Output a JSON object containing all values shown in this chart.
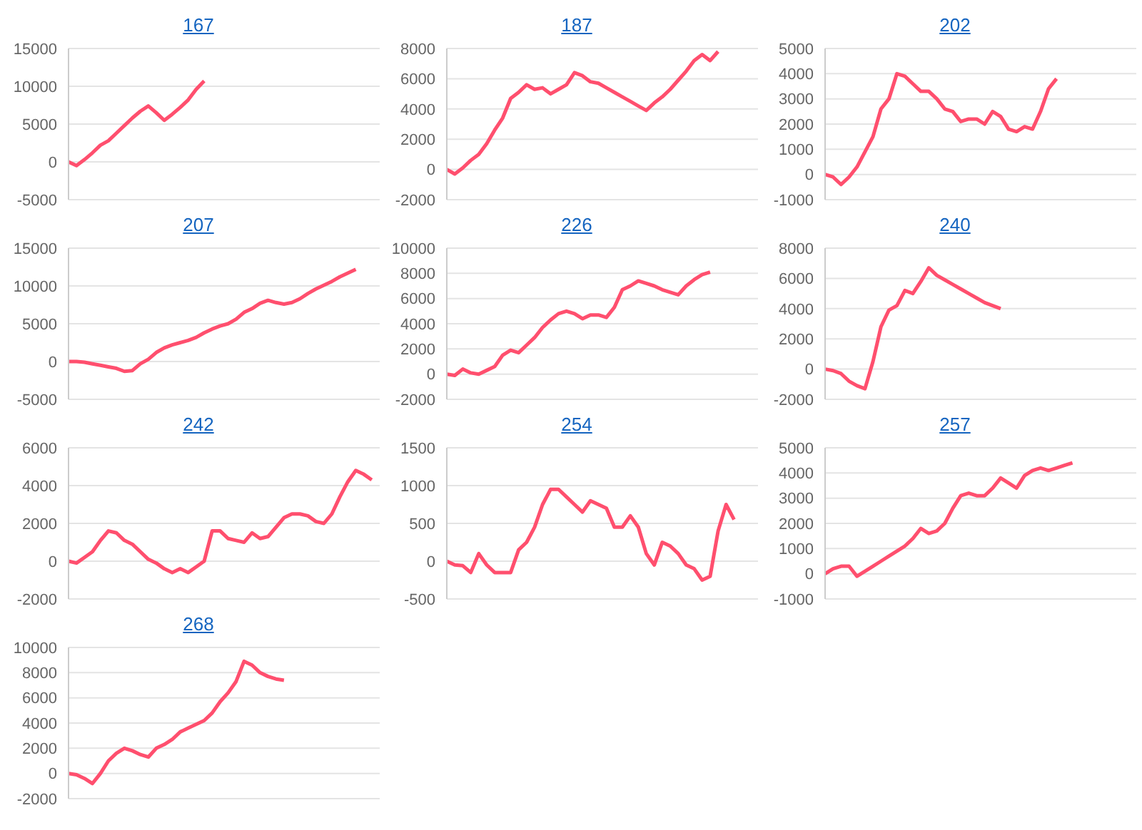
{
  "chart_data": [
    {
      "type": "line",
      "title": "167",
      "categories": [
        null,
        null,
        null,
        null,
        null,
        null,
        null,
        null,
        null,
        null,
        null,
        null,
        null,
        null,
        null,
        null,
        null,
        null,
        null,
        null,
        null,
        null,
        null,
        null,
        null,
        null,
        null,
        null,
        null,
        null,
        null,
        null,
        null,
        null,
        null,
        null,
        null,
        null,
        null,
        null
      ],
      "series": [
        {
          "color": "#ff4f6e",
          "values": [
            0,
            -500,
            300,
            1200,
            2200,
            2800,
            3800,
            4800,
            5800,
            6700,
            7400,
            6500,
            5500,
            6300,
            7200,
            8200,
            9600,
            10700,
            null,
            null,
            null,
            null,
            null,
            null,
            null,
            null,
            null,
            null,
            null,
            null,
            null,
            null,
            null,
            null,
            null,
            null,
            null,
            null,
            null,
            null
          ]
        }
      ],
      "ylim": [
        -5000,
        15000
      ],
      "yticks": [
        -5000,
        0,
        5000,
        10000,
        15000
      ],
      "grid": "y",
      "tick_labels": "y"
    },
    {
      "type": "line",
      "title": "187",
      "categories": [
        null,
        null,
        null,
        null,
        null,
        null,
        null,
        null,
        null,
        null,
        null,
        null,
        null,
        null,
        null,
        null,
        null,
        null,
        null,
        null,
        null,
        null,
        null,
        null,
        null,
        null,
        null,
        null,
        null,
        null,
        null,
        null,
        null,
        null,
        null,
        null,
        null,
        null,
        null,
        null
      ],
      "series": [
        {
          "color": "#ff4f6e",
          "values": [
            0,
            -300,
            100,
            600,
            1000,
            1700,
            2600,
            3400,
            4700,
            5100,
            5600,
            5300,
            5400,
            5000,
            5300,
            5600,
            6400,
            6200,
            5800,
            5700,
            5400,
            5100,
            4800,
            4500,
            4200,
            3900,
            4400,
            4800,
            5300,
            5900,
            6500,
            7200,
            7600,
            7200,
            7800,
            null,
            null,
            null,
            null,
            null
          ]
        }
      ],
      "ylim": [
        -2000,
        8000
      ],
      "yticks": [
        -2000,
        0,
        2000,
        4000,
        6000,
        8000
      ],
      "grid": "y",
      "tick_labels": "y"
    },
    {
      "type": "line",
      "title": "202",
      "categories": [
        null,
        null,
        null,
        null,
        null,
        null,
        null,
        null,
        null,
        null,
        null,
        null,
        null,
        null,
        null,
        null,
        null,
        null,
        null,
        null,
        null,
        null,
        null,
        null,
        null,
        null,
        null,
        null,
        null,
        null,
        null,
        null,
        null,
        null,
        null,
        null,
        null,
        null,
        null,
        null
      ],
      "series": [
        {
          "color": "#ff4f6e",
          "values": [
            0,
            -100,
            -400,
            -100,
            300,
            900,
            1500,
            2600,
            3000,
            4000,
            3900,
            3600,
            3300,
            3300,
            3000,
            2600,
            2500,
            2100,
            2200,
            2200,
            2000,
            2500,
            2300,
            1800,
            1700,
            1900,
            1800,
            2500,
            3400,
            3800,
            null,
            null,
            null,
            null,
            null,
            null,
            null,
            null,
            null,
            null
          ]
        }
      ],
      "ylim": [
        -1000,
        5000
      ],
      "yticks": [
        -1000,
        0,
        1000,
        2000,
        3000,
        4000,
        5000
      ],
      "grid": "y",
      "tick_labels": "y"
    },
    {
      "type": "line",
      "title": "207",
      "categories": [
        null,
        null,
        null,
        null,
        null,
        null,
        null,
        null,
        null,
        null,
        null,
        null,
        null,
        null,
        null,
        null,
        null,
        null,
        null,
        null,
        null,
        null,
        null,
        null,
        null,
        null,
        null,
        null,
        null,
        null,
        null,
        null,
        null,
        null,
        null,
        null,
        null,
        null,
        null,
        null
      ],
      "series": [
        {
          "color": "#ff4f6e",
          "values": [
            0,
            0,
            -100,
            -300,
            -500,
            -700,
            -900,
            -1300,
            -1200,
            -300,
            300,
            1200,
            1800,
            2200,
            2500,
            2800,
            3200,
            3800,
            4300,
            4700,
            5000,
            5600,
            6500,
            7000,
            7700,
            8100,
            7800,
            7600,
            7800,
            8300,
            9000,
            9600,
            10100,
            10600,
            11200,
            11700,
            12200,
            null,
            null,
            null
          ]
        }
      ],
      "ylim": [
        -5000,
        15000
      ],
      "yticks": [
        -5000,
        0,
        5000,
        10000,
        15000
      ],
      "grid": "y",
      "tick_labels": "y"
    },
    {
      "type": "line",
      "title": "226",
      "categories": [
        null,
        null,
        null,
        null,
        null,
        null,
        null,
        null,
        null,
        null,
        null,
        null,
        null,
        null,
        null,
        null,
        null,
        null,
        null,
        null,
        null,
        null,
        null,
        null,
        null,
        null,
        null,
        null,
        null,
        null,
        null,
        null,
        null,
        null,
        null,
        null,
        null,
        null,
        null,
        null
      ],
      "series": [
        {
          "color": "#ff4f6e",
          "values": [
            0,
            -100,
            400,
            100,
            0,
            300,
            600,
            1500,
            1900,
            1700,
            2300,
            2900,
            3700,
            4300,
            4800,
            5000,
            4800,
            4400,
            4700,
            4700,
            4500,
            5300,
            6700,
            7000,
            7400,
            7200,
            7000,
            6700,
            6500,
            6300,
            7000,
            7500,
            7900,
            8100,
            null,
            null,
            null,
            null,
            null,
            null
          ]
        }
      ],
      "ylim": [
        -2000,
        10000
      ],
      "yticks": [
        -2000,
        0,
        2000,
        4000,
        6000,
        8000,
        10000
      ],
      "grid": "y",
      "tick_labels": "y"
    },
    {
      "type": "line",
      "title": "240",
      "categories": [
        null,
        null,
        null,
        null,
        null,
        null,
        null,
        null,
        null,
        null,
        null,
        null,
        null,
        null,
        null,
        null,
        null,
        null,
        null,
        null,
        null,
        null,
        null,
        null,
        null,
        null,
        null,
        null,
        null,
        null,
        null,
        null,
        null,
        null,
        null,
        null,
        null,
        null,
        null,
        null
      ],
      "series": [
        {
          "color": "#ff4f6e",
          "values": [
            0,
            -100,
            -300,
            -800,
            -1100,
            -1300,
            500,
            2800,
            3900,
            4200,
            5200,
            5000,
            5800,
            6700,
            6200,
            5900,
            5600,
            5300,
            5000,
            4700,
            4400,
            4200,
            4000,
            null,
            null,
            null,
            null,
            null,
            null,
            null,
            null,
            null,
            null,
            null,
            null,
            null,
            null,
            null,
            null,
            null
          ]
        }
      ],
      "ylim": [
        -2000,
        8000
      ],
      "yticks": [
        -2000,
        0,
        2000,
        4000,
        6000,
        8000
      ],
      "grid": "y",
      "tick_labels": "y"
    },
    {
      "type": "line",
      "title": "242",
      "categories": [
        null,
        null,
        null,
        null,
        null,
        null,
        null,
        null,
        null,
        null,
        null,
        null,
        null,
        null,
        null,
        null,
        null,
        null,
        null,
        null,
        null,
        null,
        null,
        null,
        null,
        null,
        null,
        null,
        null,
        null,
        null,
        null,
        null,
        null,
        null,
        null,
        null,
        null,
        null,
        null
      ],
      "series": [
        {
          "color": "#ff4f6e",
          "values": [
            0,
            -100,
            200,
            500,
            1100,
            1600,
            1500,
            1100,
            900,
            500,
            100,
            -100,
            -400,
            -600,
            -400,
            -600,
            -300,
            0,
            1600,
            1600,
            1200,
            1100,
            1000,
            1500,
            1200,
            1300,
            1800,
            2300,
            2500,
            2500,
            2400,
            2100,
            2000,
            2500,
            3400,
            4200,
            4800,
            4600,
            4300,
            null
          ]
        }
      ],
      "ylim": [
        -2000,
        6000
      ],
      "yticks": [
        -2000,
        0,
        2000,
        4000,
        6000
      ],
      "grid": "y",
      "tick_labels": "y"
    },
    {
      "type": "line",
      "title": "254",
      "categories": [
        null,
        null,
        null,
        null,
        null,
        null,
        null,
        null,
        null,
        null,
        null,
        null,
        null,
        null,
        null,
        null,
        null,
        null,
        null,
        null,
        null,
        null,
        null,
        null,
        null,
        null,
        null,
        null,
        null,
        null,
        null,
        null,
        null,
        null,
        null,
        null,
        null,
        null,
        null,
        null
      ],
      "series": [
        {
          "color": "#ff4f6e",
          "values": [
            0,
            -50,
            -60,
            -150,
            100,
            -50,
            -150,
            -150,
            -150,
            150,
            250,
            450,
            750,
            950,
            950,
            850,
            750,
            650,
            800,
            750,
            700,
            450,
            450,
            600,
            450,
            100,
            -50,
            250,
            200,
            100,
            -50,
            -100,
            -250,
            -200,
            400,
            750,
            550,
            null,
            null,
            null
          ]
        }
      ],
      "ylim": [
        -500,
        1500
      ],
      "yticks": [
        -500,
        0,
        500,
        1000,
        1500
      ],
      "grid": "y",
      "tick_labels": "y"
    },
    {
      "type": "line",
      "title": "257",
      "categories": [
        null,
        null,
        null,
        null,
        null,
        null,
        null,
        null,
        null,
        null,
        null,
        null,
        null,
        null,
        null,
        null,
        null,
        null,
        null,
        null,
        null,
        null,
        null,
        null,
        null,
        null,
        null,
        null,
        null,
        null,
        null,
        null,
        null,
        null,
        null,
        null,
        null,
        null,
        null,
        null
      ],
      "series": [
        {
          "color": "#ff4f6e",
          "values": [
            0,
            200,
            300,
            300,
            -100,
            100,
            300,
            500,
            700,
            900,
            1100,
            1400,
            1800,
            1600,
            1700,
            2000,
            2600,
            3100,
            3200,
            3100,
            3100,
            3400,
            3800,
            3600,
            3400,
            3900,
            4100,
            4200,
            4100,
            4200,
            4300,
            4400,
            null,
            null,
            null,
            null,
            null,
            null,
            null,
            null
          ]
        }
      ],
      "ylim": [
        -1000,
        5000
      ],
      "yticks": [
        -1000,
        0,
        1000,
        2000,
        3000,
        4000,
        5000
      ],
      "grid": "y",
      "tick_labels": "y"
    },
    {
      "type": "line",
      "title": "268",
      "categories": [
        null,
        null,
        null,
        null,
        null,
        null,
        null,
        null,
        null,
        null,
        null,
        null,
        null,
        null,
        null,
        null,
        null,
        null,
        null,
        null,
        null,
        null,
        null,
        null,
        null,
        null,
        null,
        null,
        null,
        null,
        null,
        null,
        null,
        null,
        null,
        null,
        null,
        null,
        null,
        null
      ],
      "series": [
        {
          "color": "#ff4f6e",
          "values": [
            0,
            -100,
            -400,
            -800,
            0,
            1000,
            1600,
            2000,
            1800,
            1500,
            1300,
            2000,
            2300,
            2700,
            3300,
            3600,
            3900,
            4200,
            4800,
            5700,
            6400,
            7300,
            8900,
            8600,
            8000,
            7700,
            7500,
            7400,
            null,
            null,
            null,
            null,
            null,
            null,
            null,
            null,
            null,
            null,
            null,
            null
          ]
        }
      ],
      "ylim": [
        -2000,
        10000
      ],
      "yticks": [
        -2000,
        0,
        2000,
        4000,
        6000,
        8000,
        10000
      ],
      "grid": "y",
      "tick_labels": "y"
    }
  ]
}
